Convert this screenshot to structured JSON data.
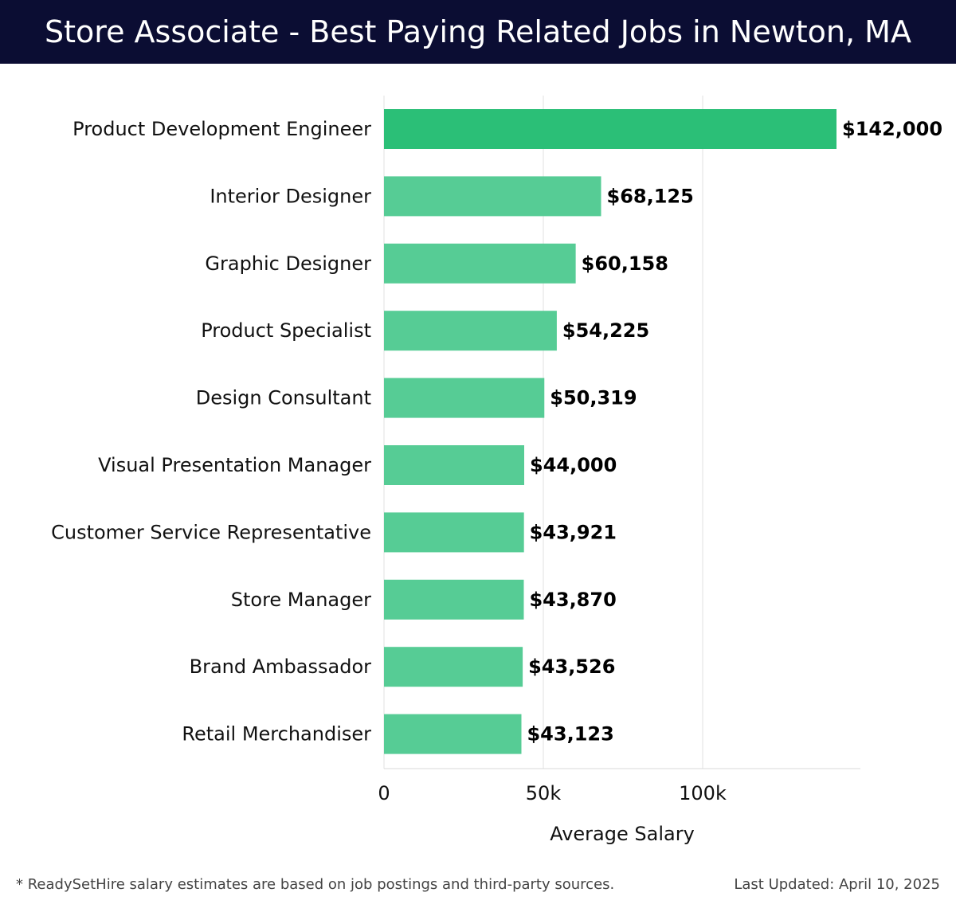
{
  "chart_data": {
    "type": "bar",
    "orientation": "horizontal",
    "title": "Store Associate - Best Paying Related Jobs in Newton, MA",
    "categories": [
      "Product Development Engineer",
      "Interior Designer",
      "Graphic Designer",
      "Product Specialist",
      "Design Consultant",
      "Visual Presentation Manager",
      "Customer Service Representative",
      "Store Manager",
      "Brand Ambassador",
      "Retail Merchandiser"
    ],
    "values": [
      142000,
      68125,
      60158,
      54225,
      50319,
      44000,
      43921,
      43870,
      43526,
      43123
    ],
    "value_labels": [
      "$142,000",
      "$68,125",
      "$60,158",
      "$54,225",
      "$50,319",
      "$44,000",
      "$43,921",
      "$43,870",
      "$43,526",
      "$43,123"
    ],
    "xlabel": "Average Salary",
    "ylabel": "",
    "xlim": [
      0,
      149500
    ],
    "xticks": [
      0,
      50000,
      100000
    ],
    "xtick_labels": [
      "0",
      "50k",
      "100k"
    ],
    "grid": true,
    "colors": {
      "highlight": "#2bbf77",
      "bar": "#56cc95",
      "header_bg": "#0b0d33",
      "grid": "#e2e2e2"
    }
  },
  "footer": {
    "note": "* ReadySetHire salary estimates are based on job postings and third-party sources.",
    "updated": "Last Updated: April 10, 2025"
  }
}
